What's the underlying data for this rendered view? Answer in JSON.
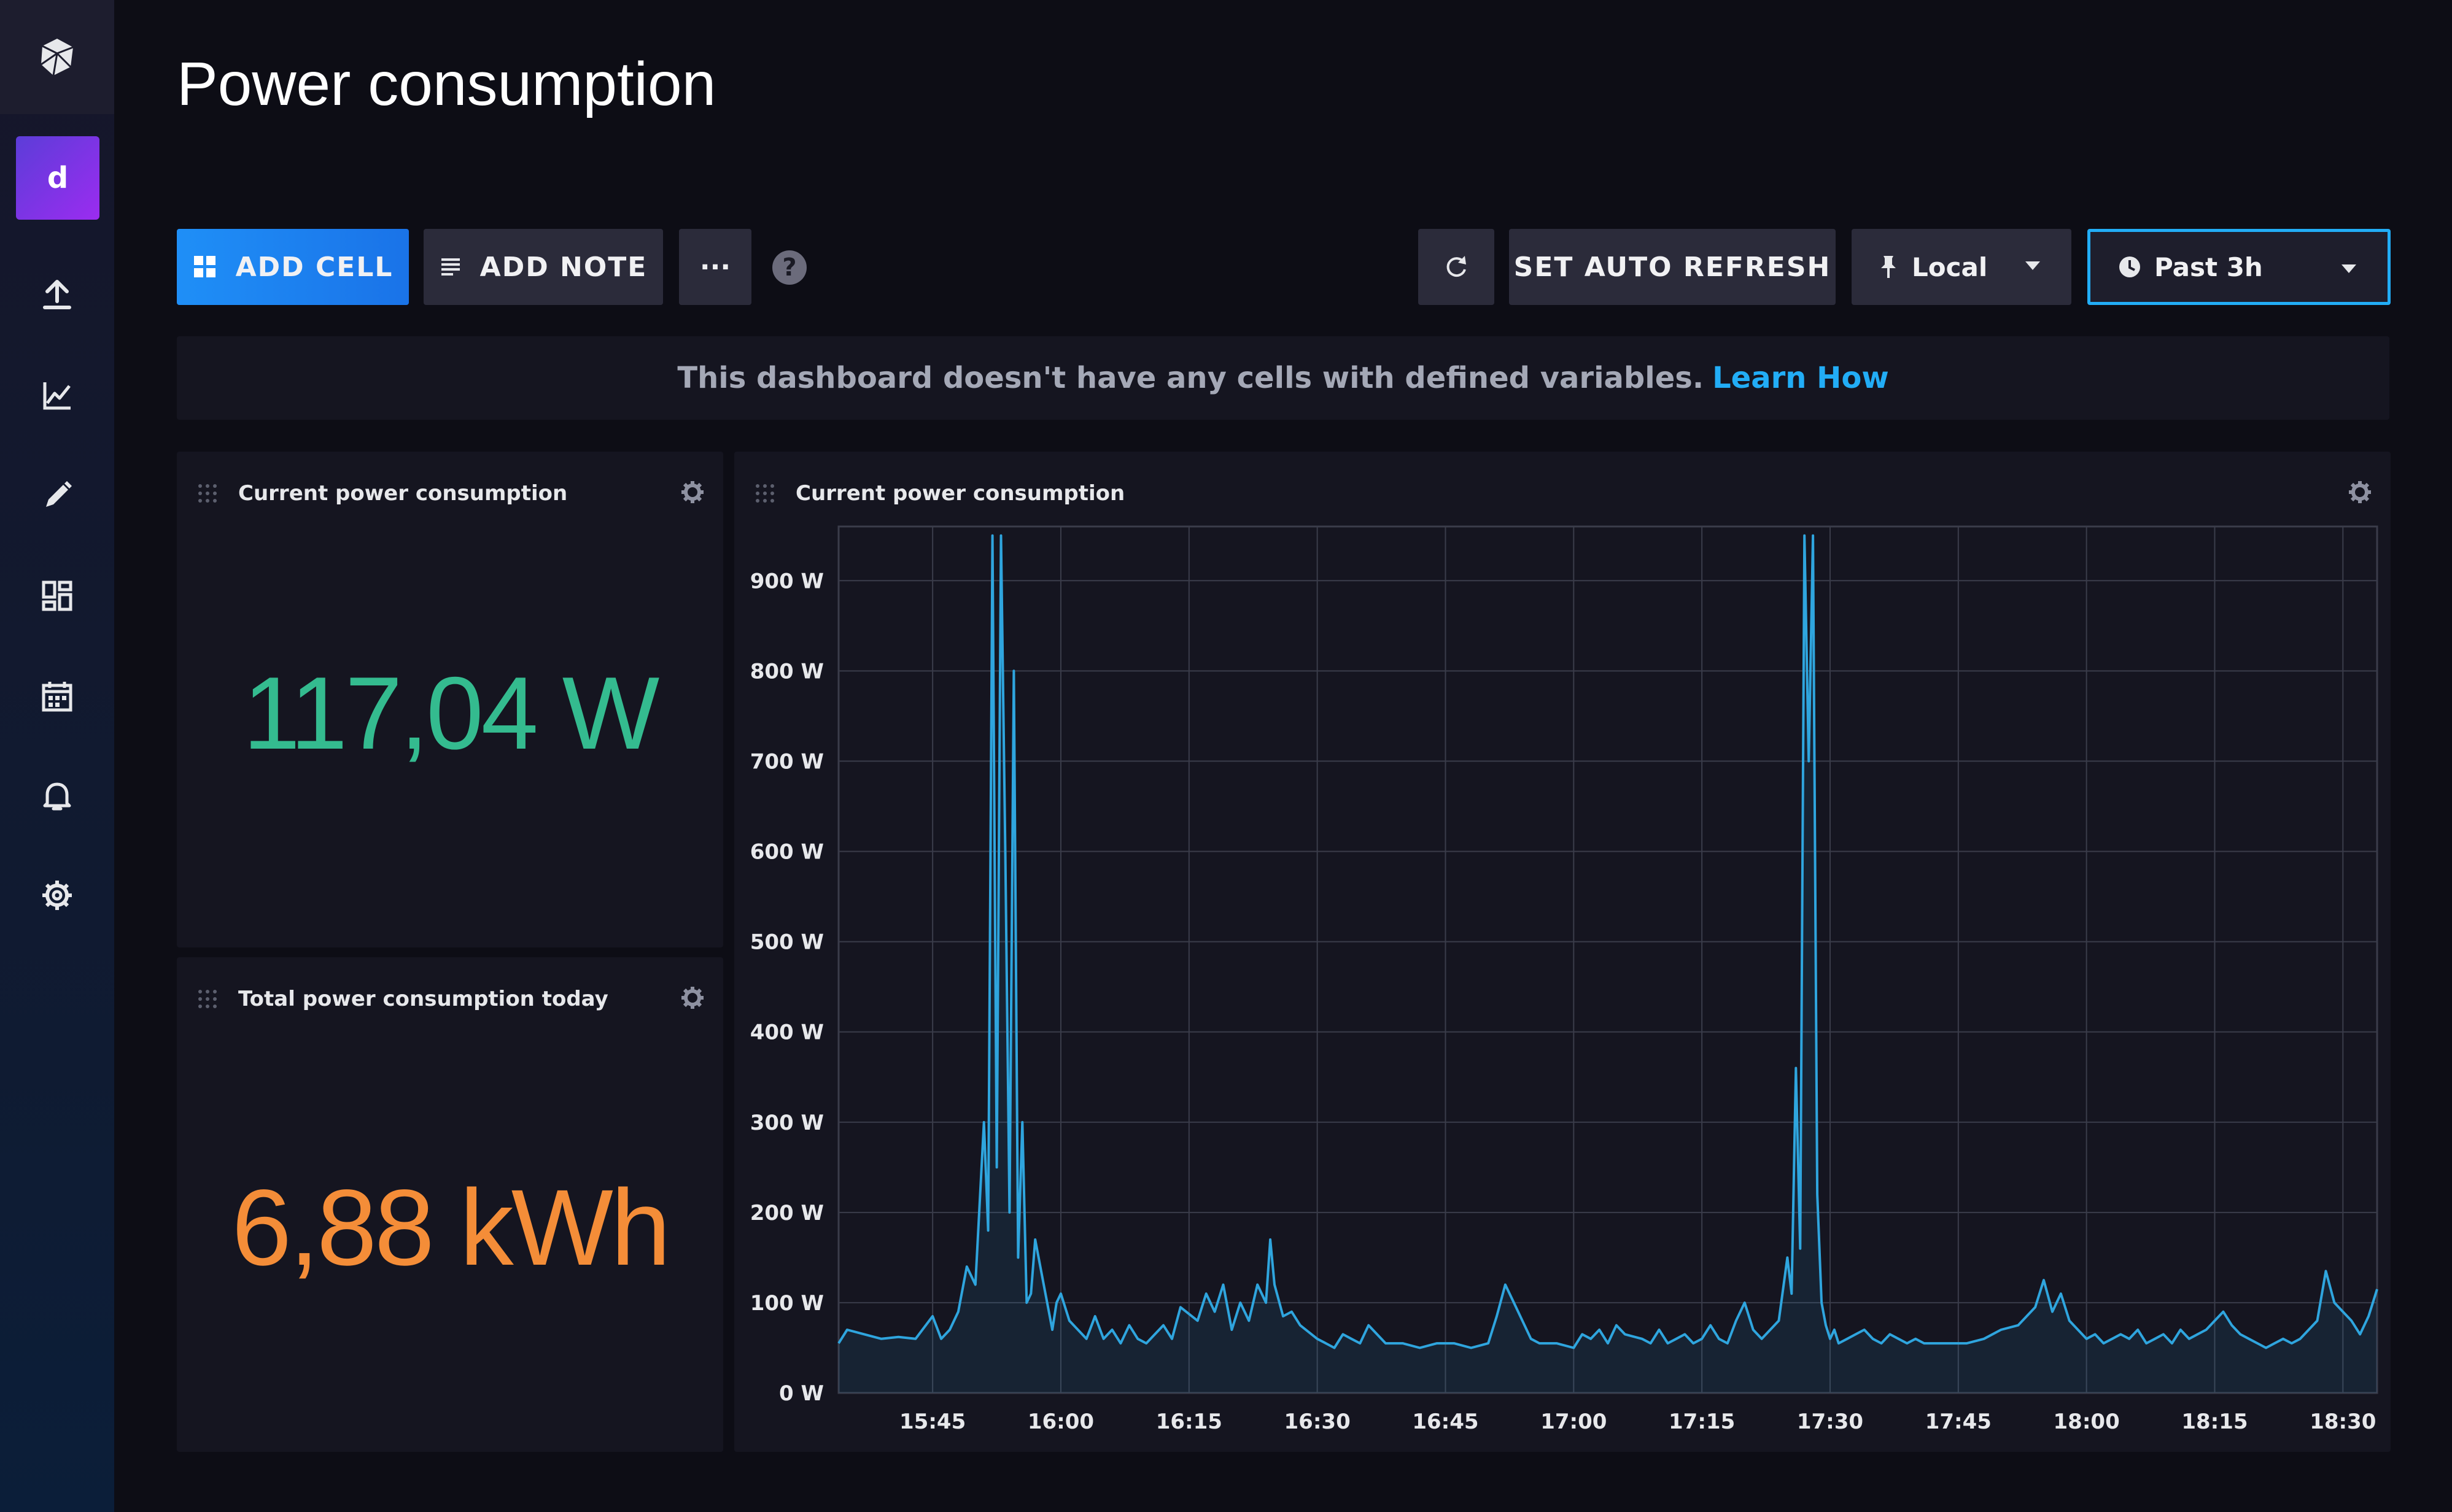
{
  "sidebar": {
    "logo": "influxdb-logo-icon",
    "org_avatar_letter": "d",
    "nav_items": [
      {
        "icon": "upload-data-icon"
      },
      {
        "icon": "data-explorer-icon"
      },
      {
        "icon": "notebook-pencil-icon"
      },
      {
        "icon": "dashboards-icon"
      },
      {
        "icon": "tasks-calendar-icon"
      },
      {
        "icon": "alerts-bell-icon"
      },
      {
        "icon": "settings-gear-icon"
      }
    ]
  },
  "header": {
    "title": "Power consumption"
  },
  "toolbar": {
    "add_cell_label": "ADD CELL",
    "add_note_label": "ADD NOTE",
    "more_label": "···",
    "help_label": "?",
    "auto_refresh_label": "SET AUTO REFRESH",
    "timezone_label": "Local",
    "time_range_label": "Past 3h"
  },
  "notice": {
    "text": "This dashboard doesn't have any cells with defined variables.",
    "link": "Learn How"
  },
  "cells": {
    "current": {
      "title": "Current power consumption",
      "value": "117,04 W",
      "color": "#34bb8f"
    },
    "total": {
      "title": "Total power consumption today",
      "value": "6,88 kWh",
      "color": "#f48d38"
    },
    "graph": {
      "title": "Current power consumption"
    }
  },
  "colors": {
    "accent": "#22adf6",
    "primary_button": "#1a73e8",
    "background": "#0d0d15",
    "cell": "#151520",
    "line": "#2fa5de"
  },
  "chart_data": {
    "type": "area",
    "title": "Current power consumption",
    "y_unit": "W",
    "ylim": [
      0,
      960
    ],
    "y_ticks": [
      "0 W",
      "100 W",
      "200 W",
      "300 W",
      "400 W",
      "500 W",
      "600 W",
      "700 W",
      "800 W",
      "900 W"
    ],
    "x_ticks": [
      "15:45",
      "16:00",
      "16:15",
      "16:30",
      "16:45",
      "17:00",
      "17:15",
      "17:30",
      "17:45",
      "18:00",
      "18:15",
      "18:30"
    ],
    "xlim": [
      "15:34",
      "18:34"
    ],
    "grid": true,
    "series": [
      {
        "x": [
          "15:34",
          "15:35",
          "15:37",
          "15:39",
          "15:41",
          "15:43",
          "15:45",
          "15:46",
          "15:47",
          "15:48",
          "15:49",
          "15:50",
          "15:51",
          "15:51.5",
          "15:52",
          "15:52.5",
          "15:53",
          "15:53.5",
          "15:54",
          "15:54.5",
          "15:55",
          "15:55.5",
          "15:56",
          "15:56.5",
          "15:57",
          "15:58",
          "15:59",
          "15:59.5",
          "16:00",
          "16:01",
          "16:02",
          "16:03",
          "16:04",
          "16:05",
          "16:06",
          "16:07",
          "16:08",
          "16:09",
          "16:10",
          "16:11",
          "16:12",
          "16:13",
          "16:14",
          "16:16",
          "16:17",
          "16:18",
          "16:19",
          "16:20",
          "16:21",
          "16:22",
          "16:23",
          "16:24",
          "16:24.5",
          "16:25",
          "16:26",
          "16:27",
          "16:28",
          "16:30",
          "16:31",
          "16:32",
          "16:33",
          "16:34",
          "16:35",
          "16:36",
          "16:38",
          "16:40",
          "16:42",
          "16:44",
          "16:46",
          "16:48",
          "16:50",
          "16:51",
          "16:52",
          "16:53",
          "16:54",
          "16:55",
          "16:56",
          "16:58",
          "17:00",
          "17:01",
          "17:02",
          "17:03",
          "17:04",
          "17:05",
          "17:06",
          "17:08",
          "17:09",
          "17:10",
          "17:11",
          "17:12",
          "17:13",
          "17:14",
          "17:15",
          "17:16",
          "17:17",
          "17:18",
          "17:19",
          "17:20",
          "17:21",
          "17:22",
          "17:23",
          "17:24",
          "17:25",
          "17:25.5",
          "17:26",
          "17:26.5",
          "17:27",
          "17:27.5",
          "17:28",
          "17:28.5",
          "17:29",
          "17:29.5",
          "17:30",
          "17:30.5",
          "17:31",
          "17:32",
          "17:33",
          "17:34",
          "17:35",
          "17:36",
          "17:37",
          "17:38",
          "17:39",
          "17:40",
          "17:41",
          "17:42",
          "17:44",
          "17:46",
          "17:48",
          "17:50",
          "17:52",
          "17:53",
          "17:54",
          "17:55",
          "17:56",
          "17:57",
          "17:58",
          "17:59",
          "18:00",
          "18:01",
          "18:02",
          "18:03",
          "18:04",
          "18:05",
          "18:06",
          "18:07",
          "18:08",
          "18:09",
          "18:10",
          "18:11",
          "18:12",
          "18:13",
          "18:14",
          "18:15",
          "18:16",
          "18:17",
          "18:18",
          "18:19",
          "18:20",
          "18:21",
          "18:22",
          "18:23",
          "18:24",
          "18:25",
          "18:26",
          "18:27",
          "18:28",
          "18:29",
          "18:30",
          "18:31",
          "18:32",
          "18:33",
          "18:34"
        ],
        "y": [
          55,
          70,
          65,
          60,
          62,
          60,
          85,
          60,
          70,
          90,
          140,
          120,
          300,
          180,
          950,
          250,
          950,
          600,
          200,
          800,
          150,
          300,
          100,
          110,
          170,
          120,
          70,
          100,
          110,
          80,
          70,
          60,
          85,
          60,
          70,
          55,
          75,
          60,
          55,
          65,
          75,
          60,
          95,
          80,
          110,
          90,
          120,
          70,
          100,
          80,
          120,
          100,
          170,
          120,
          85,
          90,
          75,
          60,
          55,
          50,
          65,
          60,
          55,
          75,
          55,
          55,
          50,
          55,
          55,
          50,
          55,
          85,
          120,
          100,
          80,
          60,
          55,
          55,
          50,
          65,
          60,
          70,
          55,
          75,
          65,
          60,
          55,
          70,
          55,
          60,
          65,
          55,
          60,
          75,
          60,
          55,
          80,
          100,
          70,
          60,
          70,
          80,
          150,
          110,
          360,
          160,
          950,
          700,
          950,
          220,
          100,
          75,
          60,
          70,
          55,
          60,
          65,
          70,
          60,
          55,
          65,
          60,
          55,
          60,
          55,
          55,
          55,
          55,
          60,
          70,
          75,
          85,
          95,
          125,
          90,
          110,
          80,
          70,
          60,
          65,
          55,
          60,
          65,
          60,
          70,
          55,
          60,
          65,
          55,
          70,
          60,
          65,
          70,
          80,
          90,
          75,
          65,
          60,
          55,
          50,
          55,
          60,
          55,
          60,
          70,
          80,
          135,
          100,
          90,
          80,
          65,
          85,
          115
        ]
      }
    ]
  }
}
